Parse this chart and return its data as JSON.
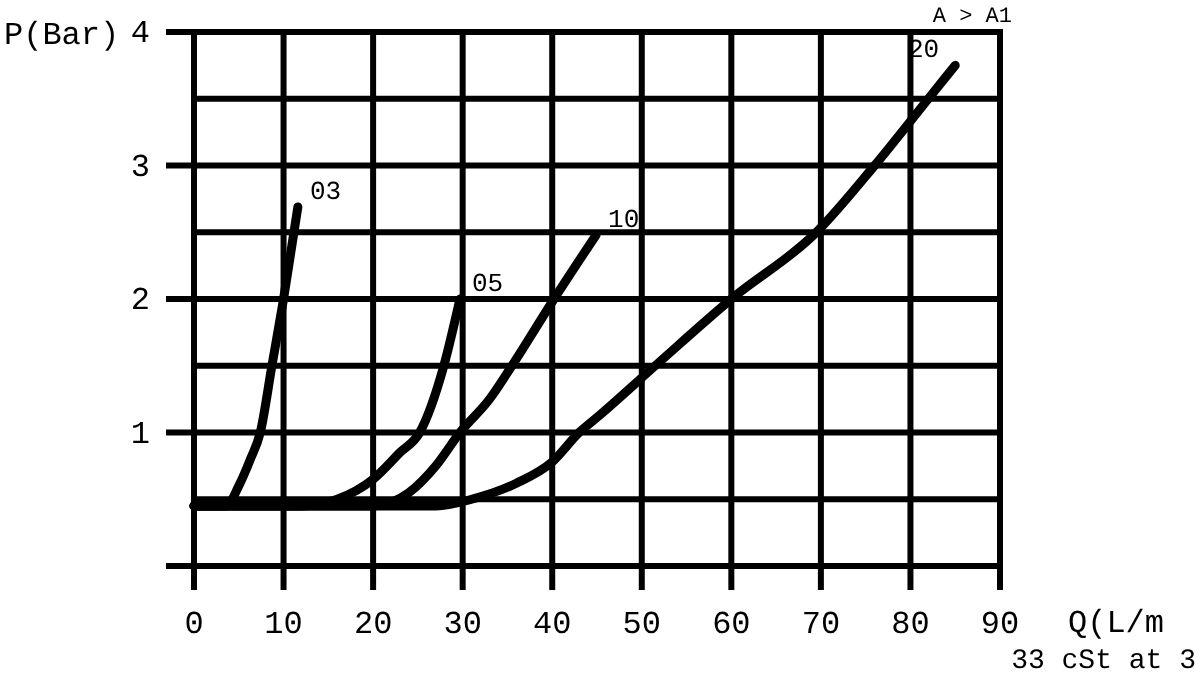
{
  "chart_data": {
    "type": "line",
    "ylabel": "P(Bar)",
    "xlabel": "Q(L/m",
    "annotations": [
      "A > A1",
      "33 cSt at 3"
    ],
    "xlim": [
      0,
      90
    ],
    "xticks": [
      0,
      10,
      20,
      30,
      40,
      50,
      60,
      70,
      80,
      90
    ],
    "ylim": [
      0,
      4
    ],
    "yticks": [
      {
        "value": 0,
        "label": null
      },
      {
        "value": 0.5,
        "label": null
      },
      1,
      {
        "value": 1.5,
        "label": null
      },
      2,
      {
        "value": 2.5,
        "label": null
      },
      3,
      {
        "value": 3.5,
        "label": null
      },
      4
    ],
    "grid": true,
    "line_style": "solid",
    "marker": "none",
    "series": [
      {
        "name": "03",
        "color": "#000000",
        "x": [
          0,
          3.6,
          5,
          6.3,
          7.4,
          8.7,
          10,
          11.6
        ],
        "values": [
          0.45,
          0.45,
          0.6,
          0.8,
          1.0,
          1.5,
          2.0,
          2.69
        ]
      },
      {
        "name": "05",
        "color": "#000000",
        "x": [
          0,
          12,
          16,
          20,
          23,
          25.2,
          27.9,
          29.7
        ],
        "values": [
          0.45,
          0.45,
          0.5,
          0.65,
          0.85,
          1.0,
          1.5,
          2.0
        ]
      },
      {
        "name": "10",
        "color": "#000000",
        "x": [
          0,
          20,
          24,
          27,
          29.7,
          33,
          35.5,
          40.2,
          44.9
        ],
        "values": [
          0.45,
          0.45,
          0.55,
          0.75,
          1.0,
          1.25,
          1.5,
          2.0,
          2.48
        ]
      },
      {
        "name": "20",
        "color": "#000000",
        "x": [
          0,
          27,
          31,
          36,
          40,
          43,
          45.3,
          51.5,
          60,
          69.5,
          76,
          82,
          85
        ],
        "values": [
          0.45,
          0.45,
          0.5,
          0.62,
          0.78,
          1.0,
          1.13,
          1.5,
          2.0,
          2.5,
          3.0,
          3.5,
          3.75
        ]
      }
    ]
  }
}
